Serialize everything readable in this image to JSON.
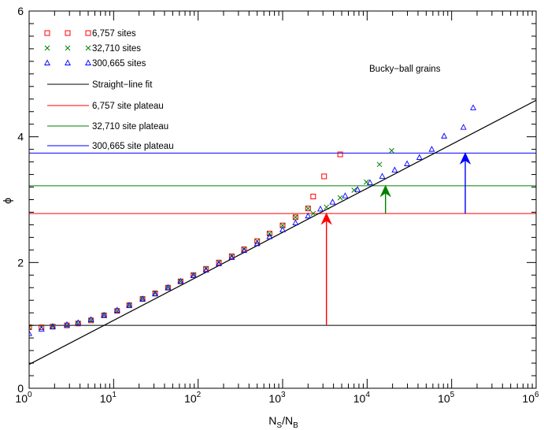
{
  "chart_data": {
    "type": "scatter",
    "title": "",
    "xlabel": "N_S/N_B",
    "ylabel": "ϕ",
    "x_scale": "log",
    "xlim": [
      1,
      1000000
    ],
    "ylim": [
      0,
      6
    ],
    "x_ticks": [
      {
        "base": "10",
        "exp": "0"
      },
      {
        "base": "10",
        "exp": "1"
      },
      {
        "base": "10",
        "exp": "2"
      },
      {
        "base": "10",
        "exp": "3"
      },
      {
        "base": "10",
        "exp": "4"
      },
      {
        "base": "10",
        "exp": "5"
      },
      {
        "base": "10",
        "exp": "6"
      }
    ],
    "y_ticks": [
      "0",
      "2",
      "4",
      "6"
    ],
    "grid": false,
    "legend_position": "top-left",
    "annotation": "Bucky−ball grains",
    "series": [
      {
        "name": "6,757 sites",
        "marker": "square",
        "color": "#ff0000",
        "x": [
          1,
          1.4,
          1.9,
          2.8,
          3.8,
          5.4,
          7.7,
          11,
          15.3,
          22,
          31,
          44,
          62,
          88,
          124,
          176,
          250,
          350,
          500,
          700,
          1000,
          1420,
          2000,
          2300,
          3100,
          4800
        ],
        "y": [
          0.97,
          0.97,
          0.98,
          1.0,
          1.03,
          1.08,
          1.16,
          1.23,
          1.32,
          1.42,
          1.51,
          1.6,
          1.7,
          1.8,
          1.9,
          2.0,
          2.1,
          2.21,
          2.34,
          2.46,
          2.59,
          2.72,
          2.86,
          3.05,
          3.37,
          3.72
        ]
      },
      {
        "name": "32,710 sites",
        "marker": "x",
        "color": "#008000",
        "x": [
          1,
          1.4,
          1.9,
          2.8,
          3.8,
          5.4,
          7.7,
          11,
          15.3,
          22,
          31,
          44,
          62,
          88,
          124,
          176,
          250,
          350,
          500,
          700,
          1000,
          1420,
          2000,
          2300,
          3300,
          4800,
          7000,
          9800,
          14000,
          19500
        ],
        "y": [
          0.97,
          0.97,
          0.98,
          1.0,
          1.03,
          1.08,
          1.16,
          1.23,
          1.32,
          1.42,
          1.51,
          1.6,
          1.7,
          1.8,
          1.9,
          2.0,
          2.1,
          2.21,
          2.34,
          2.46,
          2.59,
          2.72,
          2.86,
          2.78,
          2.88,
          3.03,
          3.15,
          3.28,
          3.56,
          3.78
        ]
      },
      {
        "name": "300,665 sites",
        "marker": "triangle",
        "color": "#0000ff",
        "x": [
          1,
          1.4,
          1.9,
          2.8,
          3.8,
          5.4,
          7.7,
          11,
          15.3,
          22,
          31,
          44,
          62,
          88,
          124,
          176,
          250,
          350,
          500,
          700,
          1000,
          1420,
          2000,
          2800,
          3900,
          5500,
          7700,
          10800,
          15100,
          21200,
          29700,
          41600,
          58200,
          81500,
          138000,
          180000
        ],
        "y": [
          0.87,
          0.94,
          0.98,
          1.01,
          1.04,
          1.09,
          1.16,
          1.24,
          1.32,
          1.42,
          1.5,
          1.6,
          1.7,
          1.79,
          1.88,
          1.98,
          2.08,
          2.19,
          2.3,
          2.41,
          2.52,
          2.63,
          2.74,
          2.85,
          2.96,
          3.06,
          3.16,
          3.27,
          3.37,
          3.47,
          3.57,
          3.67,
          3.8,
          4.01,
          4.15,
          4.46
        ]
      }
    ],
    "fit_line": {
      "name": "Straight−line fit",
      "color": "#000000",
      "x": [
        1,
        1000000
      ],
      "y": [
        0.38,
        4.58
      ]
    },
    "low_plateau": {
      "y": 1.0,
      "color": "#000000"
    },
    "plateaus": [
      {
        "name": "6,757 site plateau",
        "color": "#ff0000",
        "y": 2.78
      },
      {
        "name": "32,710 site plateau",
        "color": "#008000",
        "y": 3.22
      },
      {
        "name": "300,665 site plateau",
        "color": "#0000ff",
        "y": 3.74
      }
    ],
    "arrows": [
      {
        "color": "#ff0000",
        "x": 3300,
        "y_from": 1.0,
        "y_to": 2.78
      },
      {
        "color": "#008000",
        "x": 16500,
        "y_from": 2.78,
        "y_to": 3.22
      },
      {
        "color": "#0000ff",
        "x": 145000,
        "y_from": 2.78,
        "y_to": 3.74
      }
    ]
  }
}
